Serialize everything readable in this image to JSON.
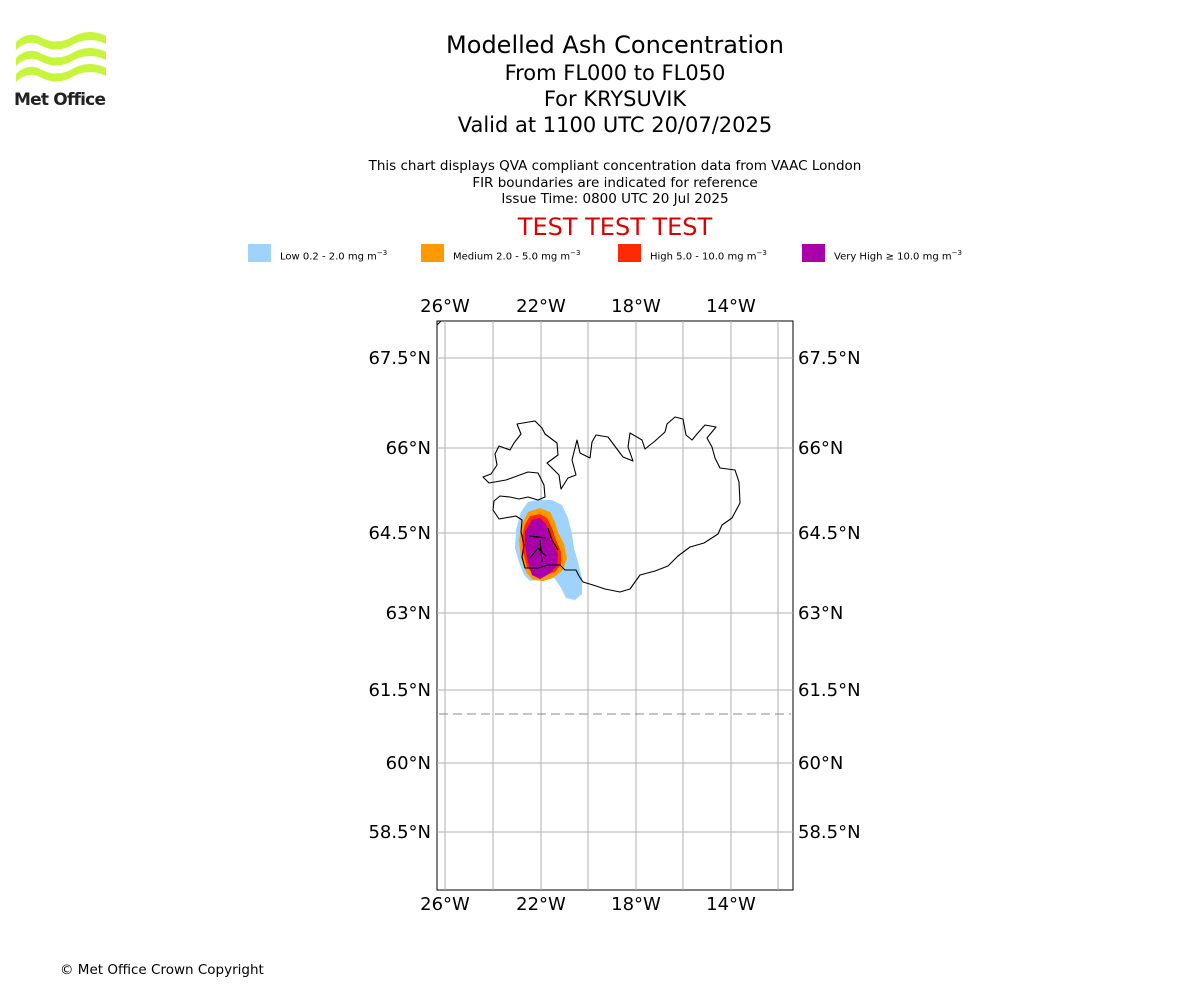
{
  "header": {
    "logo_text": "Met Office",
    "title": "Modelled Ash Concentration",
    "subtitle_levels": "From FL000 to FL050",
    "subtitle_for": "For KRYSUVIK",
    "subtitle_valid": "Valid at 1100 UTC 20/07/2025"
  },
  "description": {
    "line1": "This chart displays QVA compliant concentration data from VAAC London",
    "line2": "FIR boundaries are indicated for reference",
    "line3": "Issue Time: 0800 UTC 20 Jul 2025"
  },
  "test_banner": "TEST TEST TEST",
  "legend": [
    {
      "label": "Low 0.2 - 2.0 mg m",
      "color": "#9fd3fb"
    },
    {
      "label": "Medium 2.0 - 5.0 mg m",
      "color": "#ff9900"
    },
    {
      "label": "High 5.0 - 10.0 mg m",
      "color": "#ff2a00"
    },
    {
      "label": "Very High ≥ 10.0 mg m",
      "color": "#aa00aa"
    }
  ],
  "legend_unit_exponent": "−3",
  "map": {
    "lon_ticks": [
      "26°W",
      "22°W",
      "18°W",
      "14°W"
    ],
    "lat_ticks": [
      "67.5°N",
      "66°N",
      "64.5°N",
      "63°N",
      "61.5°N",
      "60°N",
      "58.5°N"
    ],
    "grid": true,
    "coastline_color": "#000000",
    "fir_boundary_style": "dashed"
  },
  "footer": {
    "copyright": "© Met Office Crown Copyright"
  }
}
